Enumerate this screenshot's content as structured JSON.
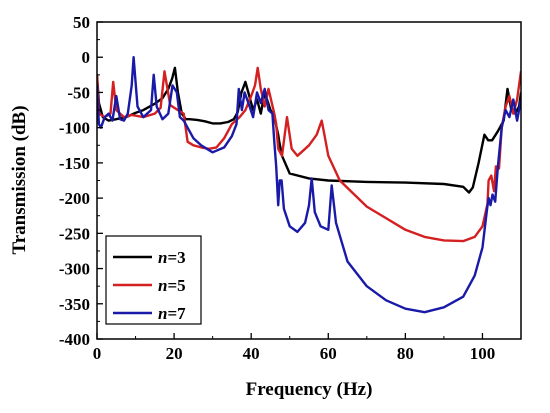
{
  "chart_data": {
    "type": "line",
    "xlabel": "Frequency (Hz)",
    "ylabel": "Transmission (dB)",
    "xlim": [
      0,
      110
    ],
    "ylim": [
      -400,
      50
    ],
    "xticks": [
      0,
      20,
      40,
      60,
      80,
      100
    ],
    "yticks": [
      -400,
      -350,
      -300,
      -250,
      -200,
      -150,
      -100,
      -50,
      0,
      50
    ],
    "grid": false,
    "legend_position": "bottom-left",
    "colors": {
      "n3": "#000000",
      "n5": "#d42020",
      "n7": "#1a1aa8"
    },
    "series": [
      {
        "name": "n=3",
        "label_var": "n",
        "label_val": "=3",
        "color": "#000000",
        "x": [
          0,
          0.5,
          1.5,
          3,
          5,
          8,
          10,
          12,
          15,
          17,
          18.5,
          19.5,
          20.2,
          21,
          22,
          23,
          24,
          26,
          28,
          30,
          32,
          34,
          35.5,
          36.5,
          37.5,
          38.5,
          39.5,
          40.5,
          41.5,
          42.5,
          43.5,
          45,
          46,
          47,
          47.3,
          48,
          50,
          55,
          60,
          70,
          80,
          90,
          95,
          96.5,
          97.5,
          99,
          100.5,
          101.5,
          102.5,
          104,
          105.5,
          106.5,
          107.5,
          108.5,
          109.5,
          110
        ],
        "y": [
          -25,
          -65,
          -85,
          -90,
          -88,
          -84,
          -79,
          -75,
          -66,
          -58,
          -45,
          -30,
          -15,
          -50,
          -80,
          -88,
          -88,
          -89,
          -91,
          -94,
          -94,
          -92,
          -88,
          -78,
          -50,
          -35,
          -55,
          -75,
          -60,
          -80,
          -50,
          -75,
          -85,
          -110,
          -120,
          -140,
          -165,
          -172,
          -175,
          -177,
          -178,
          -180,
          -184,
          -192,
          -185,
          -150,
          -110,
          -118,
          -118,
          -105,
          -90,
          -45,
          -75,
          -80,
          -70,
          -50
        ]
      },
      {
        "name": "n=5",
        "label_var": "n",
        "label_val": "=5",
        "color": "#d42020",
        "x": [
          0,
          0.5,
          2,
          3.5,
          4.2,
          5,
          7,
          9,
          12,
          15,
          16.5,
          17.5,
          19,
          21,
          22.5,
          23.5,
          25,
          27,
          29,
          31,
          33,
          35,
          37,
          38.5,
          40,
          41,
          41.7,
          42.5,
          43.5,
          44.5,
          46,
          46.5,
          47,
          48,
          49.3,
          50.5,
          52,
          55,
          57,
          58.3,
          59,
          60,
          63,
          70,
          80,
          85,
          90,
          95,
          98,
          100,
          101.3,
          101.6,
          102.3,
          103,
          103.5,
          104.3,
          105,
          106,
          107,
          108,
          109,
          110
        ],
        "y": [
          -25,
          -80,
          -85,
          -80,
          -35,
          -75,
          -85,
          -82,
          -85,
          -80,
          -72,
          -20,
          -68,
          -75,
          -80,
          -120,
          -125,
          -128,
          -130,
          -128,
          -115,
          -95,
          -85,
          -75,
          -55,
          -40,
          -15,
          -45,
          -70,
          -45,
          -80,
          -95,
          -130,
          -140,
          -85,
          -130,
          -140,
          -125,
          -110,
          -90,
          -110,
          -140,
          -175,
          -212,
          -245,
          -255,
          -260,
          -261,
          -255,
          -240,
          -208,
          -175,
          -168,
          -190,
          -155,
          -158,
          -100,
          -70,
          -55,
          -80,
          -60,
          -20
        ]
      },
      {
        "name": "n=7",
        "label_var": "n",
        "label_val": "=7",
        "color": "#1a1aa8",
        "x": [
          0,
          0.5,
          1,
          2,
          3,
          4,
          5,
          6,
          7,
          8,
          9,
          9.5,
          10.5,
          12,
          13,
          14,
          14.7,
          15.5,
          17,
          18.5,
          19.6,
          20.7,
          21.5,
          22.5,
          23.5,
          25,
          27,
          30,
          33,
          35,
          36.2,
          36.8,
          37.6,
          38.3,
          39.6,
          40.5,
          41.5,
          42.5,
          43.5,
          44.5,
          45.5,
          46,
          46.5,
          47,
          47.4,
          47.9,
          48.5,
          50,
          52,
          54,
          55,
          55.7,
          56.5,
          58,
          60,
          60.9,
          62,
          65,
          70,
          75,
          80,
          85,
          90,
          95,
          98,
          100,
          101.2,
          101.6,
          102.1,
          102.6,
          103.3,
          104,
          105,
          106,
          107,
          108,
          109,
          110
        ],
        "y": [
          -40,
          -95,
          -100,
          -85,
          -80,
          -90,
          -55,
          -88,
          -90,
          -80,
          -40,
          0,
          -70,
          -85,
          -80,
          -75,
          -25,
          -70,
          -88,
          -80,
          -40,
          -50,
          -85,
          -90,
          -100,
          -115,
          -125,
          -135,
          -128,
          -112,
          -95,
          -45,
          -75,
          -50,
          -70,
          -85,
          -50,
          -65,
          -45,
          -75,
          -80,
          -120,
          -155,
          -210,
          -175,
          -175,
          -215,
          -240,
          -248,
          -235,
          -210,
          -172,
          -220,
          -240,
          -245,
          -182,
          -235,
          -290,
          -325,
          -345,
          -357,
          -362,
          -355,
          -340,
          -310,
          -270,
          -215,
          -200,
          -210,
          -195,
          -205,
          -155,
          -100,
          -75,
          -85,
          -60,
          -90,
          -60
        ]
      }
    ]
  }
}
